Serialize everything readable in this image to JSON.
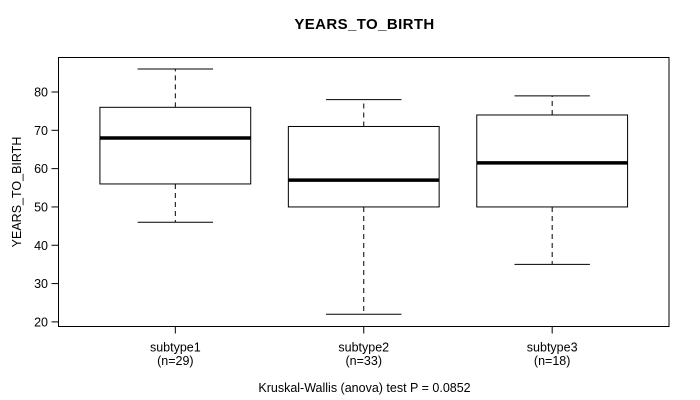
{
  "title": "YEARS_TO_BIRTH",
  "caption": "Kruskal-Wallis (anova) test P = 0.0852",
  "chart_data": {
    "type": "boxplot",
    "title": "YEARS_TO_BIRTH",
    "xlabel": "",
    "ylabel": "YEARS_TO_BIRTH",
    "ylim": [
      18.8,
      89.0
    ],
    "yticks": [
      20,
      30,
      40,
      50,
      60,
      70,
      80
    ],
    "grid": false,
    "groups": [
      {
        "label": "subtype1",
        "sublabel": "(n=29)",
        "n": 29,
        "stats": {
          "whisker_low": 46,
          "q1": 56,
          "median": 68,
          "q3": 76,
          "whisker_high": 86
        }
      },
      {
        "label": "subtype2",
        "sublabel": "(n=33)",
        "n": 33,
        "stats": {
          "whisker_low": 22,
          "q1": 50,
          "median": 57,
          "q3": 71,
          "whisker_high": 78
        }
      },
      {
        "label": "subtype3",
        "sublabel": "(n=18)",
        "n": 18,
        "stats": {
          "whisker_low": 35,
          "q1": 50,
          "median": 61.5,
          "q3": 74,
          "whisker_high": 79
        }
      }
    ],
    "colors": {
      "line": "#000000",
      "frame": "#000000",
      "box_fill": "#ffffff",
      "text": "#000000",
      "background": "#ffffff"
    }
  }
}
